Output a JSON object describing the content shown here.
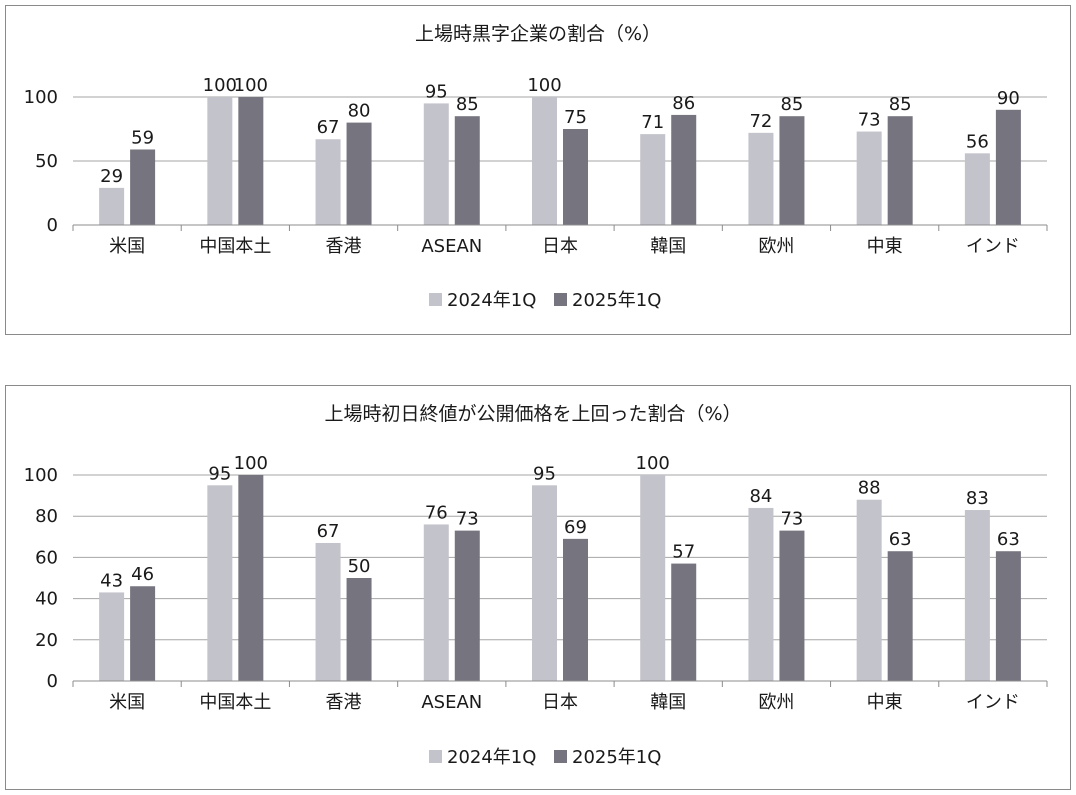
{
  "colors": {
    "s2024": "#c3c3cb",
    "s2025": "#76757f",
    "grid": "#a6a6a6"
  },
  "chart_data": [
    {
      "type": "bar",
      "title": "上場時黒字企業の割合（%）",
      "categories": [
        "米国",
        "中国本土",
        "香港",
        "ASEAN",
        "日本",
        "韓国",
        "欧州",
        "中東",
        "インド"
      ],
      "series": [
        {
          "name": "2024年1Q",
          "values": [
            29,
            100,
            67,
            95,
            100,
            71,
            72,
            73,
            56
          ]
        },
        {
          "name": "2025年1Q",
          "values": [
            59,
            100,
            80,
            85,
            75,
            86,
            85,
            85,
            90
          ]
        }
      ],
      "ylim": [
        0,
        100
      ],
      "yticks": [
        0,
        50,
        100
      ],
      "grid": true,
      "legend": "bottom"
    },
    {
      "type": "bar",
      "title": "上場時初日終値が公開価格を上回った割合（%）",
      "categories": [
        "米国",
        "中国本土",
        "香港",
        "ASEAN",
        "日本",
        "韓国",
        "欧州",
        "中東",
        "インド"
      ],
      "series": [
        {
          "name": "2024年1Q",
          "values": [
            43,
            95,
            67,
            76,
            95,
            100,
            84,
            88,
            83
          ]
        },
        {
          "name": "2025年1Q",
          "values": [
            46,
            100,
            50,
            73,
            69,
            57,
            73,
            63,
            63
          ]
        }
      ],
      "ylim": [
        0,
        100
      ],
      "yticks": [
        0,
        20,
        40,
        60,
        80,
        100
      ],
      "grid": true,
      "legend": "bottom"
    }
  ]
}
